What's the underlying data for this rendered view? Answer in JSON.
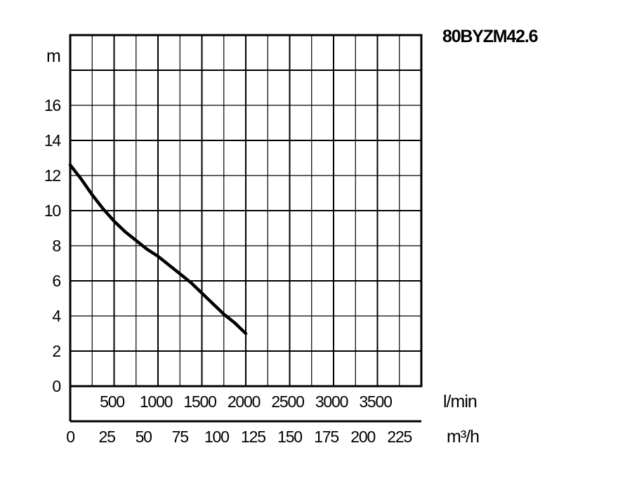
{
  "chart_data": {
    "type": "line",
    "title": "80BYZM42.6",
    "ylabel": "m",
    "xlabel_primary": "l/min",
    "xlabel_secondary": "m³/h",
    "ylim": [
      0,
      20
    ],
    "xlim_m3h": [
      0,
      240
    ],
    "y_ticks": [
      "0",
      "2",
      "4",
      "6",
      "8",
      "10",
      "12",
      "14",
      "16"
    ],
    "x_ticks_lmin": [
      "500",
      "1000",
      "1500",
      "2000",
      "2500",
      "3000",
      "3500"
    ],
    "x_ticks_m3h": [
      "0",
      "25",
      "50",
      "75",
      "100",
      "125",
      "150",
      "175",
      "200",
      "225"
    ],
    "grid": true,
    "series": [
      {
        "x": [
          0,
          7.5,
          15,
          22.5,
          30,
          37.5,
          45,
          52.5,
          60,
          67.5,
          75,
          82.5,
          90,
          97.5,
          105,
          112.5,
          120
        ],
        "y": [
          12.6,
          11.8,
          10.9,
          10.1,
          9.4,
          8.8,
          8.3,
          7.8,
          7.4,
          6.9,
          6.4,
          5.9,
          5.3,
          4.7,
          4.1,
          3.6,
          3.0
        ]
      }
    ],
    "line_color": "#000000"
  }
}
